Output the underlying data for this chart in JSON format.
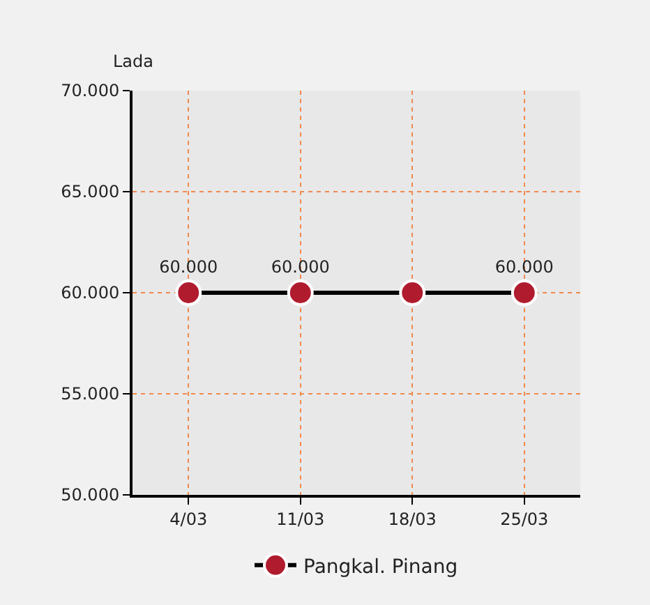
{
  "chart_data": {
    "type": "line",
    "ylabel": "Lada",
    "categories": [
      "4/03",
      "11/03",
      "18/03",
      "25/03"
    ],
    "series": [
      {
        "name": "Pangkal. Pinang",
        "color": "#b01c2e",
        "values": [
          60000,
          60000,
          60000,
          60000
        ],
        "value_labels": [
          "60.000",
          "60.000",
          null,
          "60.000"
        ]
      }
    ],
    "ylim": [
      50000,
      70000
    ],
    "yticks": [
      {
        "value": 50000,
        "label": "50.000"
      },
      {
        "value": 55000,
        "label": "55.000"
      },
      {
        "value": 60000,
        "label": "60.000"
      },
      {
        "value": 65000,
        "label": "65.000"
      },
      {
        "value": 70000,
        "label": "70.000"
      }
    ],
    "grid": true,
    "legend": "bottom",
    "marker": "circle",
    "line_style": "solid"
  }
}
